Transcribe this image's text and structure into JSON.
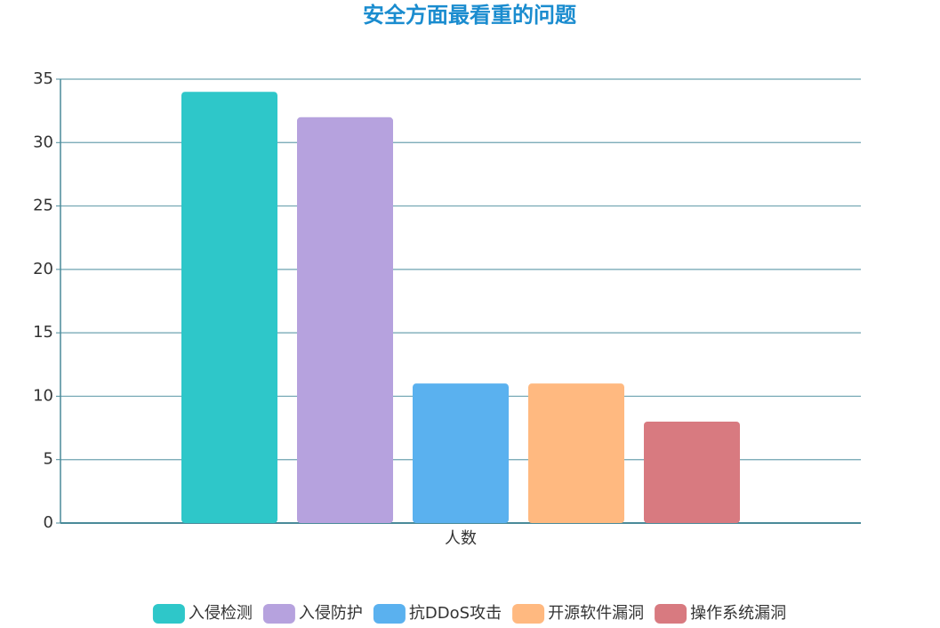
{
  "chart_data": {
    "type": "bar",
    "title": "安全方面最看重的问题",
    "categories": [
      "人数"
    ],
    "series": [
      {
        "name": "入侵检测",
        "color": "#2ec7c9",
        "values": [
          34
        ]
      },
      {
        "name": "入侵防护",
        "color": "#b6a2de",
        "values": [
          32
        ]
      },
      {
        "name": "抗DDoS攻击",
        "color": "#5ab1ef",
        "values": [
          11
        ]
      },
      {
        "name": "开源软件漏洞",
        "color": "#ffb980",
        "values": [
          11
        ]
      },
      {
        "name": "操作系统漏洞",
        "color": "#d87a80",
        "values": [
          8
        ]
      }
    ],
    "ylim": [
      0,
      35
    ],
    "yticks": [
      0,
      5,
      10,
      15,
      20,
      25,
      30,
      35
    ],
    "grid": true,
    "legend": "bottom"
  }
}
